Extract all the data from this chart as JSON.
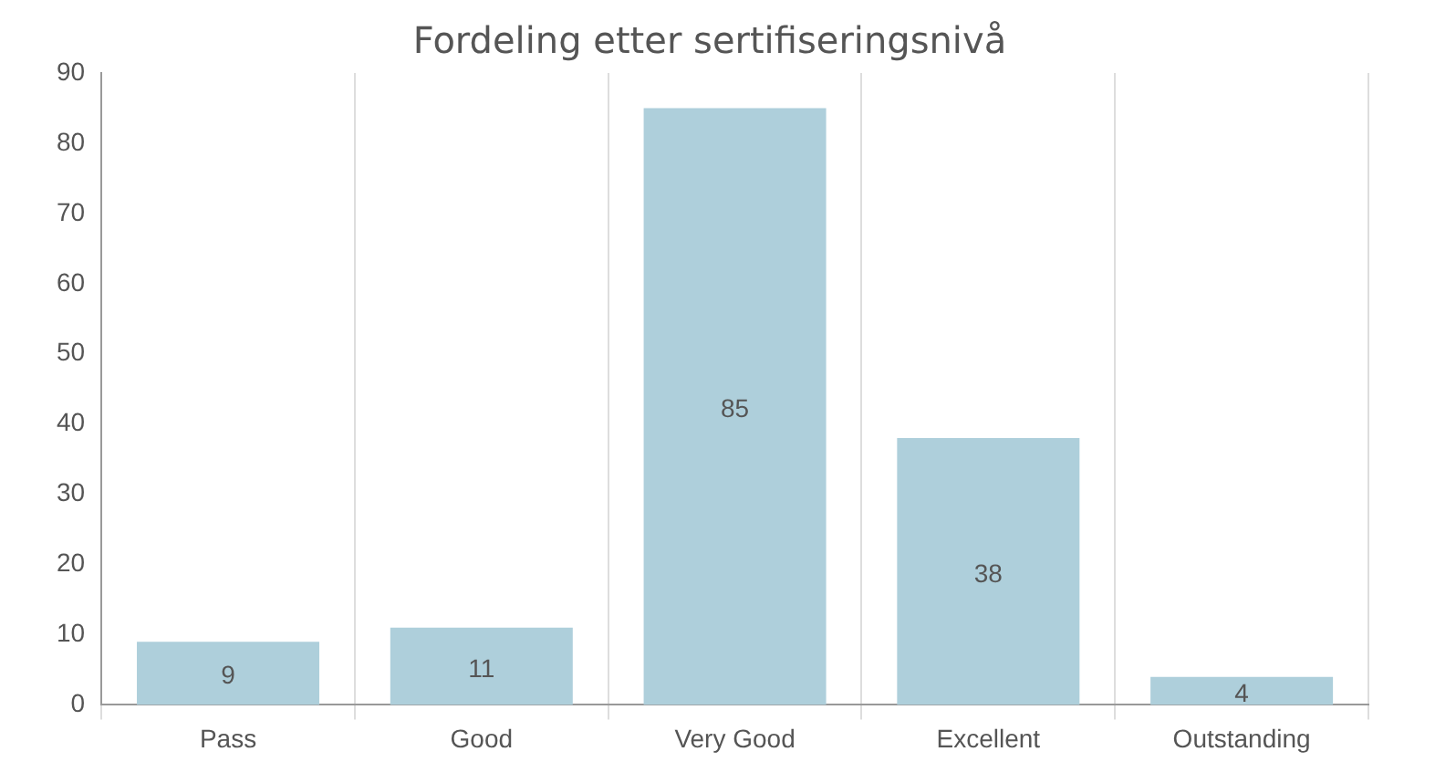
{
  "chart_data": {
    "type": "bar",
    "title": "Fordeling etter sertifiseringsnivå",
    "categories": [
      "Pass",
      "Good",
      "Very Good",
      "Excellent",
      "Outstanding"
    ],
    "values": [
      9,
      11,
      85,
      38,
      4
    ],
    "color": "#aecfdb",
    "ylim": [
      0,
      90
    ],
    "yticks": [
      0,
      10,
      20,
      30,
      40,
      50,
      60,
      70,
      80,
      90
    ],
    "grid": "x",
    "data_labels": true
  }
}
